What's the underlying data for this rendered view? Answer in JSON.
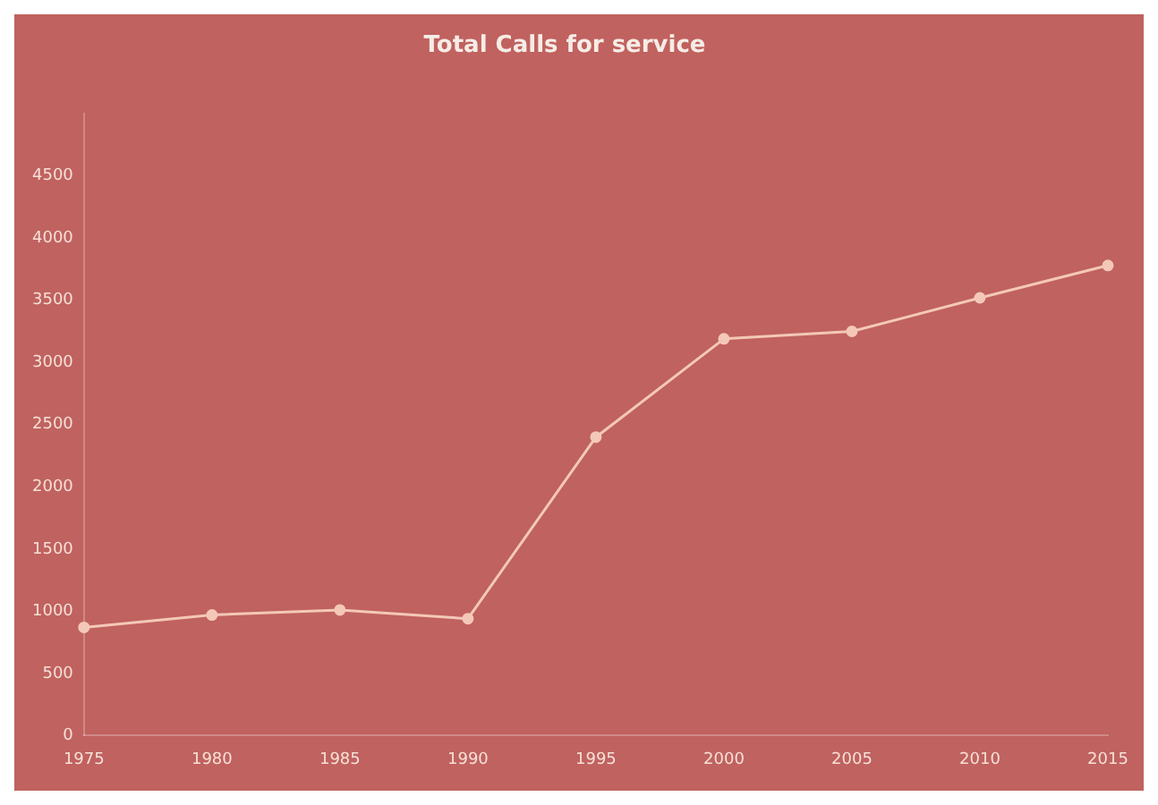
{
  "chart_data": {
    "type": "line",
    "title": "Total Calls for service",
    "categories": [
      "1975",
      "1980",
      "1985",
      "1990",
      "1995",
      "2000",
      "2005",
      "2010",
      "2015"
    ],
    "values": [
      870,
      970,
      1010,
      940,
      2400,
      3190,
      3250,
      3520,
      3780
    ],
    "color": "#f4c8b8",
    "marker": "circle",
    "grid": false,
    "ylim": [
      0,
      5000
    ],
    "yticks": [
      0,
      500,
      1000,
      1500,
      2000,
      2500,
      3000,
      3500,
      4000,
      4500
    ]
  }
}
